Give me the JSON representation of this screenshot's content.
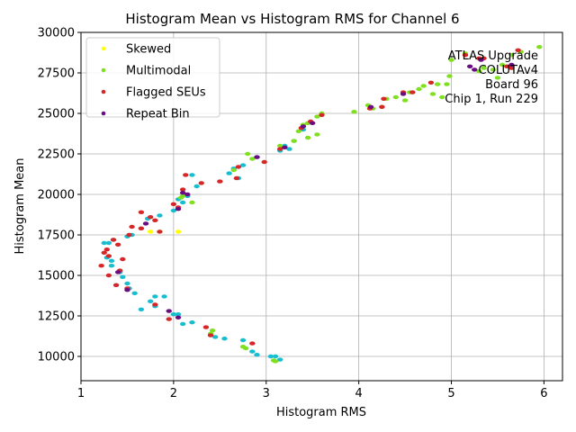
{
  "chart_data": {
    "type": "scatter",
    "title": "Histogram Mean vs Histogram RMS for Channel 6",
    "xlabel": "Histogram RMS",
    "ylabel": "Histogram Mean",
    "xlim": [
      1.0,
      6.2
    ],
    "ylim": [
      8500,
      30000
    ],
    "xticks": [
      1,
      2,
      3,
      4,
      5,
      6
    ],
    "yticks": [
      10000,
      12500,
      15000,
      17500,
      20000,
      22500,
      25000,
      27500,
      30000
    ],
    "grid": true,
    "legend_position": "upper-left",
    "annotation": [
      "ATLAS Upgrade",
      "COLUTAv4",
      "Board 96",
      "Chip 1, Run 229"
    ],
    "series": [
      {
        "name": "Skewed",
        "color": "#ffff00",
        "points": [
          [
            2.05,
            17700
          ],
          [
            1.75,
            17700
          ],
          [
            1.85,
            17700
          ]
        ]
      },
      {
        "name": "Multimodal",
        "color": "#80e020",
        "points": [
          [
            2.75,
            10600
          ],
          [
            2.78,
            10500
          ],
          [
            3.08,
            9750
          ],
          [
            3.1,
            9700
          ],
          [
            2.4,
            11400
          ],
          [
            2.42,
            11600
          ],
          [
            2.08,
            19800
          ],
          [
            2.1,
            19900
          ],
          [
            2.65,
            21500
          ],
          [
            2.8,
            22500
          ],
          [
            2.85,
            22200
          ],
          [
            3.15,
            23000
          ],
          [
            3.3,
            23300
          ],
          [
            3.45,
            23500
          ],
          [
            3.55,
            23700
          ],
          [
            3.4,
            24300
          ],
          [
            3.45,
            24400
          ],
          [
            3.55,
            24800
          ],
          [
            3.6,
            25000
          ],
          [
            3.95,
            25100
          ],
          [
            4.1,
            25500
          ],
          [
            4.15,
            25300
          ],
          [
            4.3,
            25900
          ],
          [
            4.4,
            26000
          ],
          [
            4.5,
            25800
          ],
          [
            4.55,
            26300
          ],
          [
            4.65,
            26500
          ],
          [
            4.7,
            26700
          ],
          [
            4.85,
            26800
          ],
          [
            4.95,
            26800
          ],
          [
            4.8,
            26200
          ],
          [
            4.9,
            26000
          ],
          [
            4.98,
            27300
          ],
          [
            5.0,
            28300
          ],
          [
            5.15,
            28700
          ],
          [
            5.3,
            27600
          ],
          [
            5.35,
            27800
          ],
          [
            5.45,
            27700
          ],
          [
            5.5,
            27200
          ],
          [
            5.55,
            28000
          ],
          [
            5.65,
            28600
          ],
          [
            5.75,
            28800
          ],
          [
            5.95,
            29100
          ],
          [
            4.25,
            25400
          ],
          [
            3.35,
            23900
          ],
          [
            2.2,
            19500
          ]
        ]
      },
      {
        "name": "Flagged SEUs",
        "color": "#d62728",
        "points": [
          [
            1.22,
            15600
          ],
          [
            1.25,
            16400
          ],
          [
            1.28,
            16600
          ],
          [
            1.3,
            16200
          ],
          [
            1.3,
            15000
          ],
          [
            1.35,
            17200
          ],
          [
            1.4,
            16900
          ],
          [
            1.42,
            15300
          ],
          [
            1.38,
            14400
          ],
          [
            1.5,
            14200
          ],
          [
            1.55,
            18000
          ],
          [
            1.52,
            17500
          ],
          [
            1.65,
            17900
          ],
          [
            1.65,
            18900
          ],
          [
            1.75,
            18600
          ],
          [
            1.8,
            18400
          ],
          [
            1.85,
            17700
          ],
          [
            1.8,
            13200
          ],
          [
            1.95,
            12300
          ],
          [
            2.0,
            19400
          ],
          [
            2.05,
            19200
          ],
          [
            2.1,
            20300
          ],
          [
            2.13,
            21200
          ],
          [
            2.3,
            20700
          ],
          [
            2.5,
            20800
          ],
          [
            2.7,
            21700
          ],
          [
            2.68,
            21000
          ],
          [
            2.35,
            11800
          ],
          [
            2.4,
            11300
          ],
          [
            2.85,
            10800
          ],
          [
            2.98,
            22000
          ],
          [
            3.15,
            22800
          ],
          [
            3.38,
            24100
          ],
          [
            3.48,
            24500
          ],
          [
            3.6,
            24900
          ],
          [
            4.12,
            25300
          ],
          [
            4.25,
            25400
          ],
          [
            4.27,
            25900
          ],
          [
            4.48,
            26300
          ],
          [
            4.58,
            26300
          ],
          [
            4.78,
            26900
          ],
          [
            5.15,
            28600
          ],
          [
            5.3,
            28400
          ],
          [
            5.35,
            28400
          ],
          [
            5.6,
            27900
          ],
          [
            5.65,
            27800
          ],
          [
            5.72,
            28900
          ],
          [
            1.45,
            16000
          ]
        ]
      },
      {
        "name": "Repeat Bin",
        "color": "#6a0d83",
        "points": [
          [
            2.05,
            12400
          ],
          [
            1.95,
            12800
          ],
          [
            1.7,
            18200
          ],
          [
            2.05,
            19100
          ],
          [
            2.1,
            20100
          ],
          [
            2.15,
            20000
          ],
          [
            2.9,
            22300
          ],
          [
            3.2,
            22900
          ],
          [
            3.4,
            24200
          ],
          [
            3.5,
            24400
          ],
          [
            4.13,
            25400
          ],
          [
            4.48,
            26200
          ],
          [
            5.2,
            27900
          ],
          [
            5.25,
            27700
          ],
          [
            5.32,
            28300
          ],
          [
            5.65,
            28000
          ],
          [
            1.4,
            15200
          ],
          [
            1.5,
            14100
          ]
        ]
      },
      {
        "name": "",
        "color": "#17becf",
        "points": [
          [
            1.25,
            17000
          ],
          [
            1.3,
            17000
          ],
          [
            1.35,
            17200
          ],
          [
            1.5,
            17400
          ],
          [
            1.55,
            17500
          ],
          [
            1.28,
            16100
          ],
          [
            1.33,
            15600
          ],
          [
            1.33,
            15900
          ],
          [
            1.42,
            15200
          ],
          [
            1.45,
            14900
          ],
          [
            1.5,
            14500
          ],
          [
            1.38,
            14400
          ],
          [
            1.52,
            14200
          ],
          [
            1.58,
            13900
          ],
          [
            1.65,
            12900
          ],
          [
            1.75,
            13400
          ],
          [
            1.8,
            13700
          ],
          [
            1.9,
            13700
          ],
          [
            1.8,
            13100
          ],
          [
            1.85,
            18700
          ],
          [
            1.65,
            17900
          ],
          [
            1.72,
            18500
          ],
          [
            2.0,
            12600
          ],
          [
            2.05,
            12600
          ],
          [
            2.1,
            12000
          ],
          [
            2.2,
            12100
          ],
          [
            2.0,
            19000
          ],
          [
            2.05,
            19700
          ],
          [
            2.1,
            19500
          ],
          [
            2.15,
            19900
          ],
          [
            2.2,
            21200
          ],
          [
            2.25,
            20500
          ],
          [
            2.55,
            11100
          ],
          [
            2.45,
            11200
          ],
          [
            2.75,
            11000
          ],
          [
            2.85,
            10300
          ],
          [
            2.9,
            10100
          ],
          [
            3.05,
            10000
          ],
          [
            3.1,
            10000
          ],
          [
            3.15,
            9800
          ],
          [
            2.6,
            21300
          ],
          [
            2.65,
            21600
          ],
          [
            2.7,
            21000
          ],
          [
            2.75,
            21800
          ],
          [
            2.9,
            22300
          ],
          [
            3.15,
            22700
          ],
          [
            3.2,
            23000
          ],
          [
            3.25,
            22800
          ],
          [
            3.3,
            23300
          ],
          [
            3.4,
            24000
          ]
        ]
      }
    ]
  }
}
